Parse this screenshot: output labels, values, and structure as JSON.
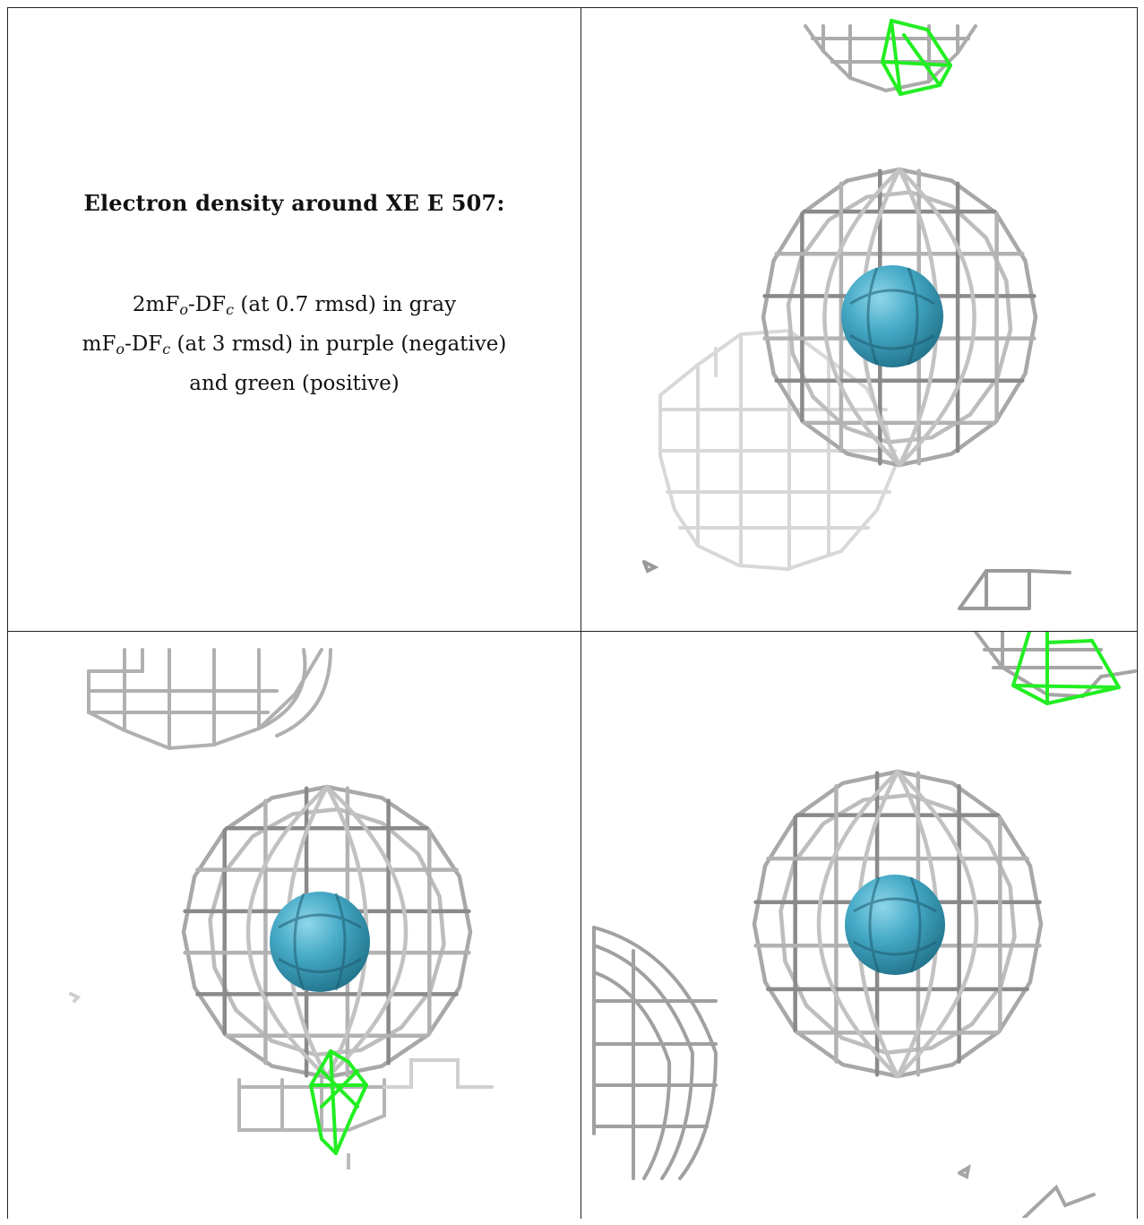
{
  "caption": {
    "title": "Electron density around XE E 507:",
    "line1_prefix": "2mF",
    "line1_sub1": "o",
    "line1_mid": "-DF",
    "line1_sub2": "c",
    "line1_suffix": " (at 0.7 rmsd) in gray",
    "line2_prefix": "mF",
    "line2_sub1": "o",
    "line2_mid": "-DF",
    "line2_sub2": "c",
    "line2_suffix": " (at 3 rmsd) in purple (negative)",
    "line3": "and green (positive)"
  },
  "colors": {
    "mesh_gray": "#a9a9a9",
    "mesh_gray_dark": "#7d7d7d",
    "mesh_faint": "#d6d6d6",
    "mesh_green": "#22ee22",
    "atom_cyan": "#3fa3c0",
    "border": "#222222"
  },
  "icons": {
    "atom": "sphere-atom-icon"
  }
}
